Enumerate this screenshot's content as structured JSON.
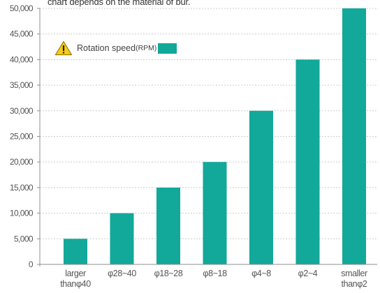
{
  "note": "chart depends on the material of bur.",
  "legend": {
    "label": "Rotation speed",
    "unit": "(RPM)",
    "color": "#12a89a",
    "icon": "warning-icon"
  },
  "chart_data": {
    "type": "bar",
    "title": "",
    "xlabel": "",
    "ylabel": "",
    "categories": [
      [
        "larger",
        "thanφ40"
      ],
      [
        "φ28~40"
      ],
      [
        "φ18~28"
      ],
      [
        "φ8~18"
      ],
      [
        "φ4~8"
      ],
      [
        "φ2~4"
      ],
      [
        "smaller",
        "thanφ2"
      ]
    ],
    "series": [
      {
        "name": "Rotation speed(RPM)",
        "values": [
          5000,
          10000,
          15000,
          20000,
          30000,
          40000,
          50000
        ]
      }
    ],
    "ylim": [
      0,
      50000
    ],
    "yticks": [
      0,
      5000,
      10000,
      15000,
      20000,
      25000,
      30000,
      35000,
      40000,
      45000,
      50000
    ],
    "ytick_labels": [
      "0",
      "5,000",
      "10,000",
      "15,000",
      "20,000",
      "25,000",
      "30,000",
      "35,000",
      "40,000",
      "45,000",
      "50,000"
    ],
    "grid": true,
    "legend_position": "top-left",
    "bar_color": "#12a89a",
    "grid_color": "#cccccc"
  }
}
